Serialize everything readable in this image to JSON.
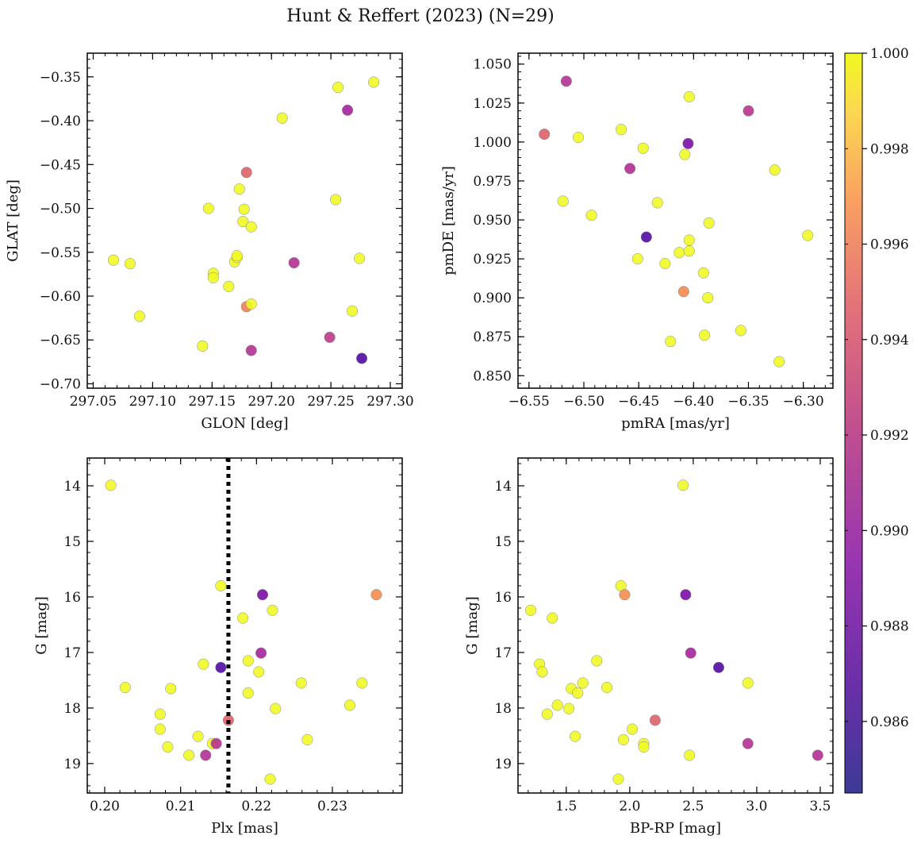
{
  "title": "Hunt & Reffert (2023) (N=29)",
  "colorbar": {
    "min": 0.9845,
    "max": 1.0,
    "ticks": [
      0.986,
      0.988,
      0.99,
      0.992,
      0.994,
      0.996,
      0.998,
      1.0
    ],
    "tick_labels": [
      "0.986",
      "0.988",
      "0.990",
      "0.992",
      "0.994",
      "0.996",
      "0.998",
      "1.000"
    ],
    "colormap": "plasma"
  },
  "chart_data": [
    {
      "type": "scatter",
      "name": "glon-glat",
      "xlabel": "GLON [deg]",
      "ylabel": "GLAT [deg]",
      "xlim": [
        297.045,
        297.31
      ],
      "ylim": [
        -0.705,
        -0.323
      ],
      "y_inverted": false,
      "xticks": [
        297.05,
        297.1,
        297.15,
        297.2,
        297.25,
        297.3
      ],
      "xtick_labels": [
        "297.05",
        "297.10",
        "297.15",
        "297.20",
        "297.25",
        "297.30"
      ],
      "yticks": [
        -0.7,
        -0.65,
        -0.6,
        -0.55,
        -0.5,
        -0.45,
        -0.4,
        -0.35
      ],
      "ytick_labels": [
        "−0.70",
        "−0.65",
        "−0.60",
        "−0.55",
        "−0.50",
        "−0.45",
        "−0.40",
        "−0.35"
      ],
      "points": [
        {
          "x": 297.067,
          "y": -0.559,
          "c": 1.0
        },
        {
          "x": 297.081,
          "y": -0.563,
          "c": 1.0
        },
        {
          "x": 297.089,
          "y": -0.623,
          "c": 1.0
        },
        {
          "x": 297.142,
          "y": -0.657,
          "c": 1.0
        },
        {
          "x": 297.147,
          "y": -0.5,
          "c": 1.0
        },
        {
          "x": 297.151,
          "y": -0.574,
          "c": 1.0
        },
        {
          "x": 297.151,
          "y": -0.579,
          "c": 1.0
        },
        {
          "x": 297.164,
          "y": -0.589,
          "c": 1.0
        },
        {
          "x": 297.169,
          "y": -0.561,
          "c": 1.0
        },
        {
          "x": 297.171,
          "y": -0.556,
          "c": 1.0
        },
        {
          "x": 297.171,
          "y": -0.554,
          "c": 1.0
        },
        {
          "x": 297.173,
          "y": -0.478,
          "c": 1.0
        },
        {
          "x": 297.176,
          "y": -0.515,
          "c": 1.0
        },
        {
          "x": 297.177,
          "y": -0.501,
          "c": 1.0
        },
        {
          "x": 297.179,
          "y": -0.459,
          "c": 0.9925
        },
        {
          "x": 297.179,
          "y": -0.612,
          "c": 0.9942
        },
        {
          "x": 297.183,
          "y": -0.521,
          "c": 1.0
        },
        {
          "x": 297.183,
          "y": -0.609,
          "c": 1.0
        },
        {
          "x": 297.183,
          "y": -0.662,
          "c": 0.9895
        },
        {
          "x": 297.209,
          "y": -0.397,
          "c": 1.0
        },
        {
          "x": 297.219,
          "y": -0.562,
          "c": 0.9895
        },
        {
          "x": 297.249,
          "y": -0.647,
          "c": 0.9902
        },
        {
          "x": 297.254,
          "y": -0.49,
          "c": 1.0
        },
        {
          "x": 297.256,
          "y": -0.362,
          "c": 1.0
        },
        {
          "x": 297.264,
          "y": -0.388,
          "c": 0.9887
        },
        {
          "x": 297.268,
          "y": -0.617,
          "c": 1.0
        },
        {
          "x": 297.274,
          "y": -0.557,
          "c": 1.0
        },
        {
          "x": 297.276,
          "y": -0.671,
          "c": 0.9846
        },
        {
          "x": 297.286,
          "y": -0.356,
          "c": 1.0
        }
      ]
    },
    {
      "type": "scatter",
      "name": "pmra-pmde",
      "xlabel": "pmRA [mas/yr]",
      "ylabel": "pmDE [mas/yr]",
      "xlim": [
        -6.56,
        -6.273
      ],
      "ylim": [
        0.842,
        1.057
      ],
      "y_inverted": false,
      "xticks": [
        -6.55,
        -6.5,
        -6.45,
        -6.4,
        -6.35,
        -6.3
      ],
      "xtick_labels": [
        "−6.55",
        "−6.50",
        "−6.45",
        "−6.40",
        "−6.35",
        "−6.30"
      ],
      "yticks": [
        0.85,
        0.875,
        0.9,
        0.925,
        0.95,
        0.975,
        1.0,
        1.025,
        1.05
      ],
      "ytick_labels": [
        "0.850",
        "0.875",
        "0.900",
        "0.925",
        "0.950",
        "0.975",
        "1.000",
        "1.025",
        "1.050"
      ],
      "points": [
        {
          "x": -6.536,
          "y": 1.005,
          "c": 0.9925
        },
        {
          "x": -6.519,
          "y": 0.962,
          "c": 1.0
        },
        {
          "x": -6.516,
          "y": 1.039,
          "c": 0.9895
        },
        {
          "x": -6.505,
          "y": 1.003,
          "c": 1.0
        },
        {
          "x": -6.493,
          "y": 0.953,
          "c": 1.0
        },
        {
          "x": -6.466,
          "y": 1.008,
          "c": 1.0
        },
        {
          "x": -6.458,
          "y": 0.983,
          "c": 0.9893
        },
        {
          "x": -6.451,
          "y": 0.925,
          "c": 1.0
        },
        {
          "x": -6.446,
          "y": 0.996,
          "c": 1.0
        },
        {
          "x": -6.443,
          "y": 0.939,
          "c": 0.9846
        },
        {
          "x": -6.433,
          "y": 0.961,
          "c": 1.0
        },
        {
          "x": -6.426,
          "y": 0.922,
          "c": 1.0
        },
        {
          "x": -6.421,
          "y": 0.872,
          "c": 1.0
        },
        {
          "x": -6.413,
          "y": 0.929,
          "c": 1.0
        },
        {
          "x": -6.409,
          "y": 0.904,
          "c": 0.9948
        },
        {
          "x": -6.408,
          "y": 0.992,
          "c": 1.0
        },
        {
          "x": -6.405,
          "y": 0.999,
          "c": 0.9865
        },
        {
          "x": -6.404,
          "y": 0.937,
          "c": 1.0
        },
        {
          "x": -6.404,
          "y": 1.029,
          "c": 1.0
        },
        {
          "x": -6.404,
          "y": 0.93,
          "c": 1.0
        },
        {
          "x": -6.391,
          "y": 0.916,
          "c": 1.0
        },
        {
          "x": -6.39,
          "y": 0.876,
          "c": 1.0
        },
        {
          "x": -6.387,
          "y": 0.9,
          "c": 1.0
        },
        {
          "x": -6.386,
          "y": 0.948,
          "c": 1.0
        },
        {
          "x": -6.357,
          "y": 0.879,
          "c": 1.0
        },
        {
          "x": -6.35,
          "y": 1.02,
          "c": 0.9898
        },
        {
          "x": -6.326,
          "y": 0.982,
          "c": 1.0
        },
        {
          "x": -6.322,
          "y": 0.859,
          "c": 1.0
        },
        {
          "x": -6.296,
          "y": 0.94,
          "c": 1.0
        }
      ]
    },
    {
      "type": "scatter",
      "name": "plx-g",
      "xlabel": "Plx [mas]",
      "ylabel": "G [mag]",
      "xlim": [
        0.1977,
        0.2392
      ],
      "ylim": [
        13.5,
        19.53
      ],
      "y_inverted": true,
      "vline": {
        "x": 0.2163,
        "style": "dotted"
      },
      "xticks": [
        0.2,
        0.21,
        0.22,
        0.23
      ],
      "xtick_labels": [
        "0.20",
        "0.21",
        "0.22",
        "0.23"
      ],
      "yticks": [
        14,
        15,
        16,
        17,
        18,
        19
      ],
      "ytick_labels": [
        "14",
        "15",
        "16",
        "17",
        "18",
        "19"
      ],
      "points": [
        {
          "x": 0.2008,
          "y": 13.99,
          "c": 1.0
        },
        {
          "x": 0.2027,
          "y": 17.63,
          "c": 1.0
        },
        {
          "x": 0.2073,
          "y": 18.11,
          "c": 1.0
        },
        {
          "x": 0.2073,
          "y": 18.38,
          "c": 1.0
        },
        {
          "x": 0.2083,
          "y": 18.7,
          "c": 1.0
        },
        {
          "x": 0.2087,
          "y": 17.65,
          "c": 1.0
        },
        {
          "x": 0.2111,
          "y": 18.85,
          "c": 1.0
        },
        {
          "x": 0.2123,
          "y": 18.51,
          "c": 1.0
        },
        {
          "x": 0.213,
          "y": 17.21,
          "c": 1.0
        },
        {
          "x": 0.2133,
          "y": 18.85,
          "c": 0.9894
        },
        {
          "x": 0.2142,
          "y": 18.64,
          "c": 1.0
        },
        {
          "x": 0.2147,
          "y": 18.64,
          "c": 0.9895
        },
        {
          "x": 0.2153,
          "y": 15.8,
          "c": 1.0
        },
        {
          "x": 0.2153,
          "y": 17.27,
          "c": 0.9846
        },
        {
          "x": 0.2163,
          "y": 18.22,
          "c": 0.9925
        },
        {
          "x": 0.2182,
          "y": 16.38,
          "c": 1.0
        },
        {
          "x": 0.2189,
          "y": 17.73,
          "c": 1.0
        },
        {
          "x": 0.2189,
          "y": 17.15,
          "c": 1.0
        },
        {
          "x": 0.2203,
          "y": 17.35,
          "c": 1.0
        },
        {
          "x": 0.2206,
          "y": 17.01,
          "c": 0.9887
        },
        {
          "x": 0.2208,
          "y": 15.96,
          "c": 0.9865
        },
        {
          "x": 0.2218,
          "y": 19.28,
          "c": 1.0
        },
        {
          "x": 0.2221,
          "y": 16.24,
          "c": 1.0
        },
        {
          "x": 0.2225,
          "y": 18.01,
          "c": 1.0
        },
        {
          "x": 0.2259,
          "y": 17.55,
          "c": 1.0
        },
        {
          "x": 0.2267,
          "y": 18.57,
          "c": 1.0
        },
        {
          "x": 0.2323,
          "y": 17.95,
          "c": 1.0
        },
        {
          "x": 0.2339,
          "y": 17.55,
          "c": 1.0
        },
        {
          "x": 0.2358,
          "y": 15.96,
          "c": 0.995
        }
      ]
    },
    {
      "type": "scatter",
      "name": "bprp-g",
      "xlabel": "BP-RP [mag]",
      "ylabel": "G [mag]",
      "xlim": [
        1.12,
        3.6
      ],
      "ylim": [
        13.5,
        19.53
      ],
      "y_inverted": true,
      "xticks": [
        1.5,
        2.0,
        2.5,
        3.0,
        3.5
      ],
      "xtick_labels": [
        "1.5",
        "2.0",
        "2.5",
        "3.0",
        "3.5"
      ],
      "yticks": [
        14,
        15,
        16,
        17,
        18,
        19
      ],
      "ytick_labels": [
        "14",
        "15",
        "16",
        "17",
        "18",
        "19"
      ],
      "points": [
        {
          "x": 1.22,
          "y": 16.24,
          "c": 1.0
        },
        {
          "x": 1.29,
          "y": 17.21,
          "c": 1.0
        },
        {
          "x": 1.31,
          "y": 17.35,
          "c": 1.0
        },
        {
          "x": 1.35,
          "y": 18.11,
          "c": 1.0
        },
        {
          "x": 1.39,
          "y": 16.38,
          "c": 1.0
        },
        {
          "x": 1.43,
          "y": 17.95,
          "c": 1.0
        },
        {
          "x": 1.52,
          "y": 18.01,
          "c": 1.0
        },
        {
          "x": 1.54,
          "y": 17.65,
          "c": 1.0
        },
        {
          "x": 1.57,
          "y": 18.51,
          "c": 1.0
        },
        {
          "x": 1.59,
          "y": 17.73,
          "c": 1.0
        },
        {
          "x": 1.63,
          "y": 17.55,
          "c": 1.0
        },
        {
          "x": 1.74,
          "y": 17.15,
          "c": 1.0
        },
        {
          "x": 1.82,
          "y": 17.63,
          "c": 1.0
        },
        {
          "x": 1.91,
          "y": 19.28,
          "c": 1.0
        },
        {
          "x": 1.93,
          "y": 15.8,
          "c": 1.0
        },
        {
          "x": 1.95,
          "y": 18.57,
          "c": 1.0
        },
        {
          "x": 1.96,
          "y": 15.96,
          "c": 0.995
        },
        {
          "x": 2.02,
          "y": 18.38,
          "c": 1.0
        },
        {
          "x": 2.11,
          "y": 18.64,
          "c": 1.0
        },
        {
          "x": 2.11,
          "y": 18.7,
          "c": 1.0
        },
        {
          "x": 2.2,
          "y": 18.22,
          "c": 0.9925
        },
        {
          "x": 2.42,
          "y": 13.99,
          "c": 1.0
        },
        {
          "x": 2.44,
          "y": 15.96,
          "c": 0.9865
        },
        {
          "x": 2.47,
          "y": 18.85,
          "c": 1.0
        },
        {
          "x": 2.48,
          "y": 17.01,
          "c": 0.9887
        },
        {
          "x": 2.7,
          "y": 17.27,
          "c": 0.9846
        },
        {
          "x": 2.93,
          "y": 17.55,
          "c": 1.0
        },
        {
          "x": 2.93,
          "y": 18.64,
          "c": 0.9895
        },
        {
          "x": 3.48,
          "y": 18.85,
          "c": 0.9894
        }
      ]
    }
  ]
}
